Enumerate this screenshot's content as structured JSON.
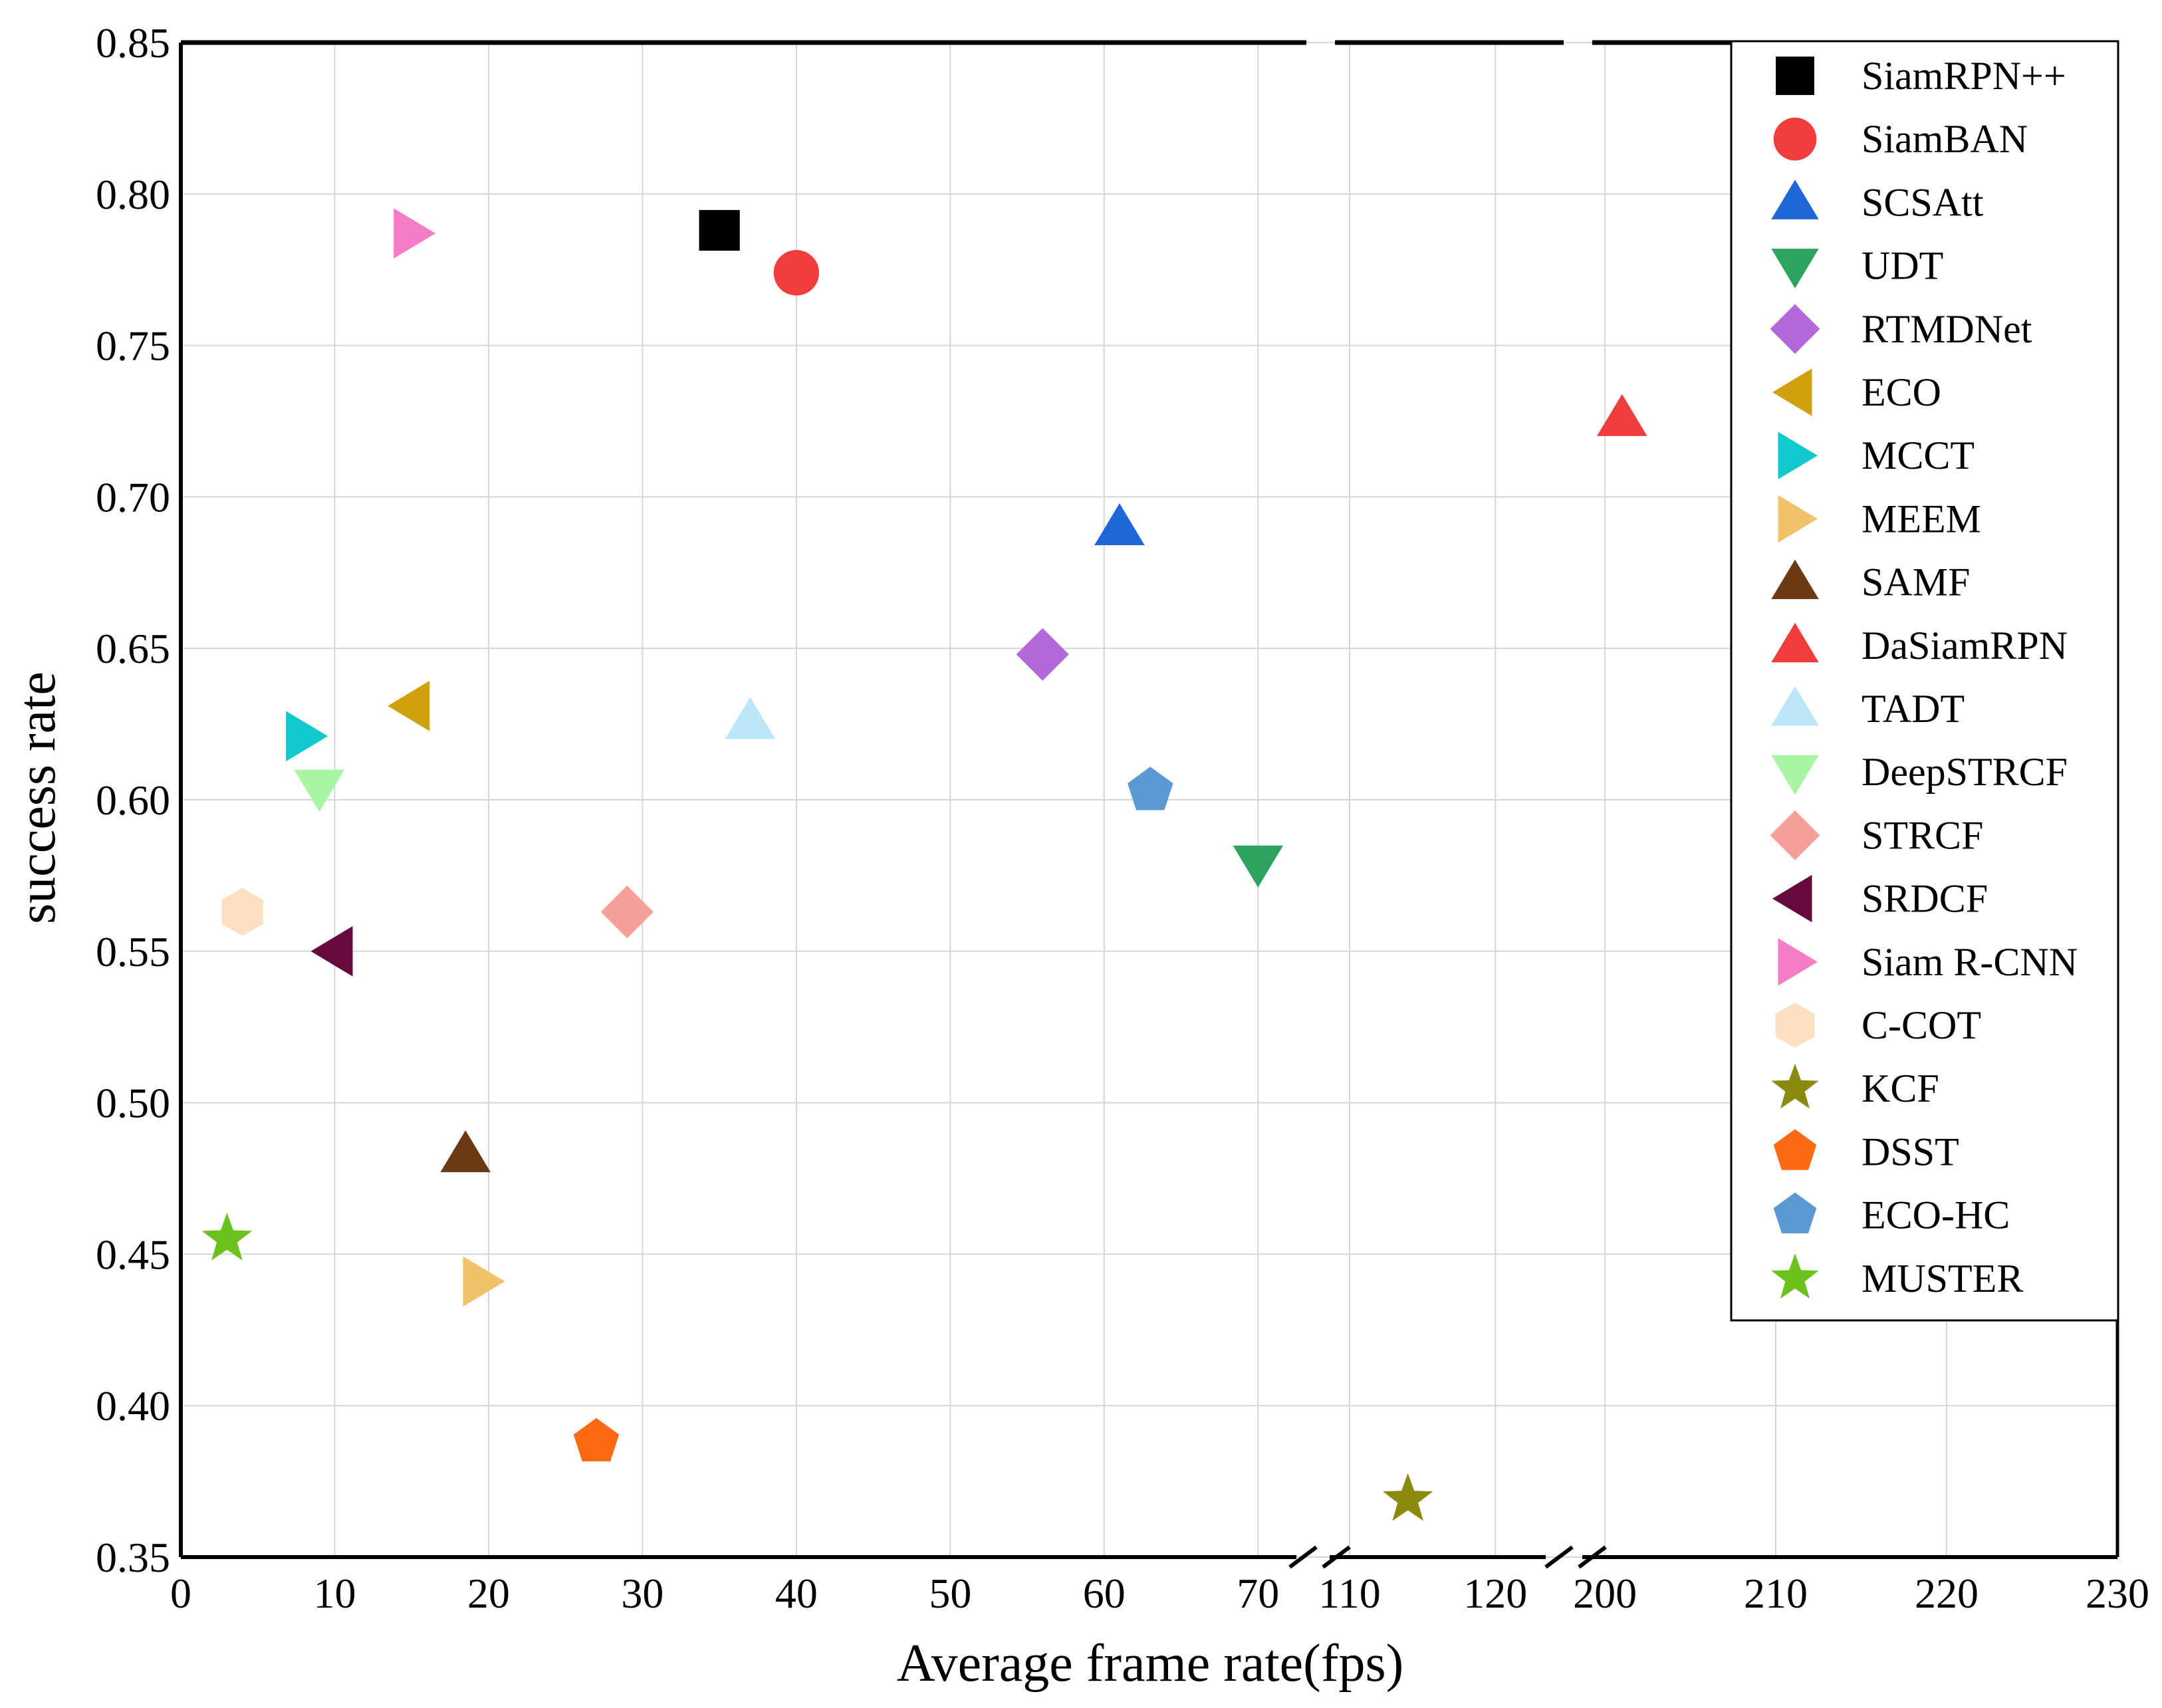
{
  "chart_data": {
    "type": "scatter",
    "title": "",
    "xlabel": "Average frame rate(fps)",
    "ylabel": "success rate",
    "ylim": [
      0.35,
      0.85
    ],
    "y_ticks": [
      "0.35",
      "0.40",
      "0.45",
      "0.50",
      "0.55",
      "0.60",
      "0.65",
      "0.70",
      "0.75",
      "0.80",
      "0.85"
    ],
    "x_axis_breaks": true,
    "x_segments": [
      {
        "range": [
          0,
          75
        ],
        "ticks": [
          "0",
          "10",
          "20",
          "30",
          "40",
          "50",
          "60",
          "70"
        ]
      },
      {
        "range": [
          109,
          124
        ],
        "ticks": [
          "110",
          "120"
        ]
      },
      {
        "range": [
          197,
          230
        ],
        "ticks": [
          "200",
          "210",
          "220",
          "230"
        ]
      }
    ],
    "grid": true,
    "legend_position": "top-right",
    "series": [
      {
        "name": "SiamRPN++",
        "marker": "square",
        "color": "#000000",
        "x": 35,
        "y": 0.788
      },
      {
        "name": "SiamBAN",
        "marker": "circle",
        "color": "#f03c3c",
        "x": 40,
        "y": 0.774
      },
      {
        "name": "SCSAtt",
        "marker": "triangle-up",
        "color": "#1f66d6",
        "x": 61,
        "y": 0.69
      },
      {
        "name": "UDT",
        "marker": "triangle-down",
        "color": "#2ea35f",
        "x": 70,
        "y": 0.579
      },
      {
        "name": "RTMDNet",
        "marker": "diamond",
        "color": "#b36ad8",
        "x": 56,
        "y": 0.648
      },
      {
        "name": "ECO",
        "marker": "triangle-left",
        "color": "#d1a00e",
        "x": 15,
        "y": 0.631
      },
      {
        "name": "MCCT",
        "marker": "triangle-right",
        "color": "#11c8cf",
        "x": 8,
        "y": 0.621
      },
      {
        "name": "MEEM",
        "marker": "triangle-right",
        "color": "#f0c36a",
        "x": 19.5,
        "y": 0.441
      },
      {
        "name": "SAMF",
        "marker": "triangle-up",
        "color": "#6b3a14",
        "x": 18.5,
        "y": 0.483
      },
      {
        "name": "DaSiamRPN",
        "marker": "triangle-up",
        "color": "#f03c3c",
        "x": 201,
        "y": 0.726
      },
      {
        "name": "TADT",
        "marker": "triangle-up",
        "color": "#bde6f8",
        "x": 37,
        "y": 0.626
      },
      {
        "name": "DeepSTRCF",
        "marker": "triangle-down",
        "color": "#a8f5a6",
        "x": 9,
        "y": 0.604
      },
      {
        "name": "STRCF",
        "marker": "diamond",
        "color": "#f6a09a",
        "x": 29,
        "y": 0.563
      },
      {
        "name": "SRDCF",
        "marker": "triangle-left",
        "color": "#650a3a",
        "x": 10,
        "y": 0.55
      },
      {
        "name": "Siam R-CNN",
        "marker": "triangle-right",
        "color": "#f57dc6",
        "x": 15,
        "y": 0.787
      },
      {
        "name": "C-COT",
        "marker": "hexagon",
        "color": "#fde0c4",
        "x": 4,
        "y": 0.563
      },
      {
        "name": "KCF",
        "marker": "star",
        "color": "#8a8a10",
        "x": 114,
        "y": 0.369
      },
      {
        "name": "DSST",
        "marker": "pentagon",
        "color": "#fa6a12",
        "x": 27,
        "y": 0.388
      },
      {
        "name": "ECO-HC",
        "marker": "pentagon",
        "color": "#5c99d2",
        "x": 63,
        "y": 0.603
      },
      {
        "name": "MUSTER",
        "marker": "star",
        "color": "#6cc21c",
        "x": 3,
        "y": 0.455
      }
    ]
  }
}
